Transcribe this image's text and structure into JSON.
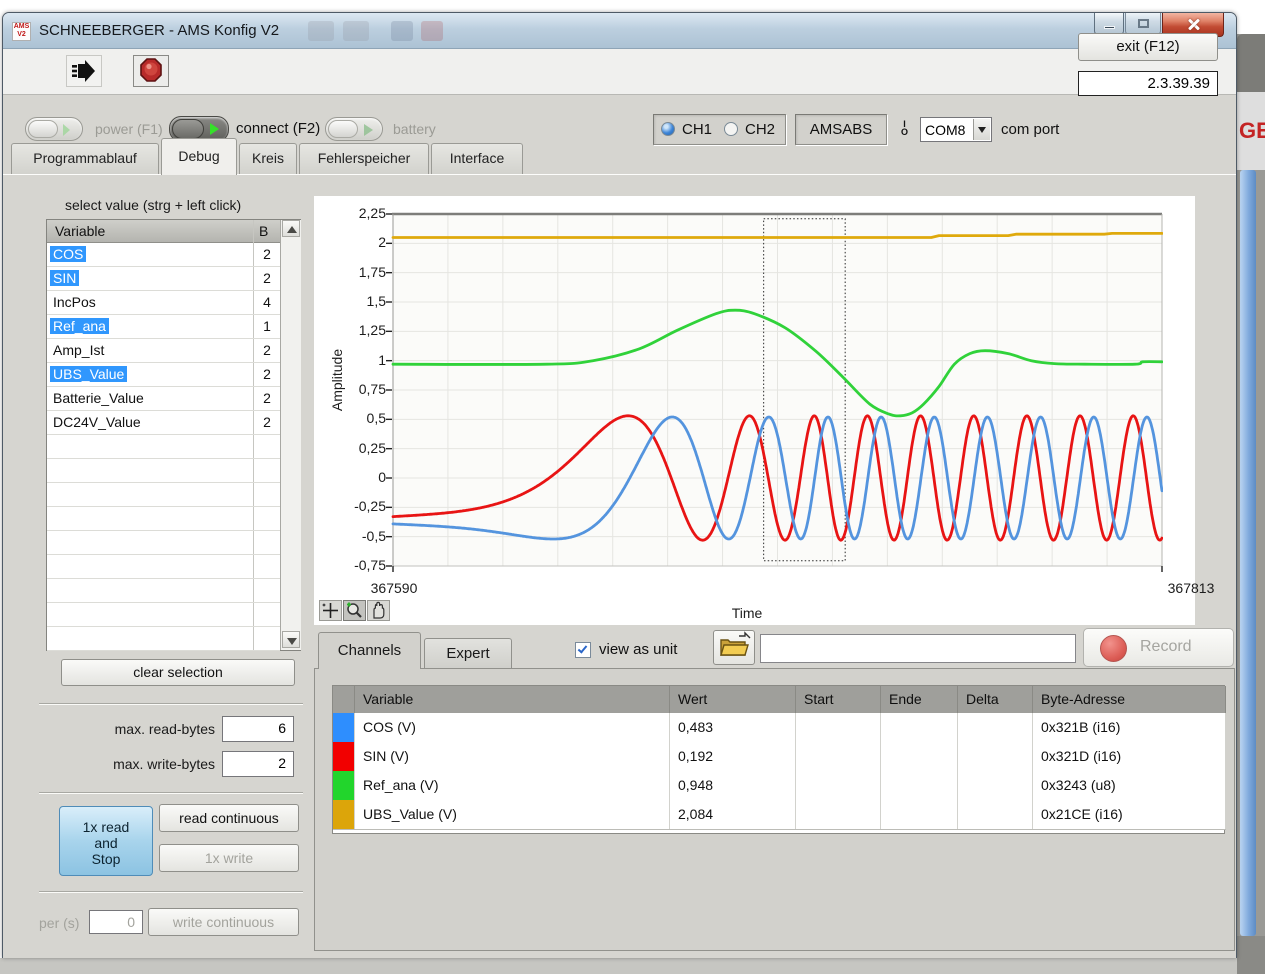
{
  "window": {
    "title": "SCHNEEBERGER - AMS Konfig V2",
    "icon_line1": "AMS",
    "icon_line2": "V2",
    "version": "2.3.39.39"
  },
  "header": {
    "power_label": "power (F1)",
    "connect_label": "connect (F2)",
    "battery_label": "battery",
    "ch1_label": "CH1",
    "ch2_label": "CH2",
    "device_name": "AMSABS",
    "io_top": "I",
    "io_bottom": "O",
    "com_value": "COM8",
    "com_label": "com port",
    "exit_label": "exit (F12)"
  },
  "tabs": {
    "items": [
      "Programmablauf",
      "Debug",
      "Kreis",
      "Fehlerspeicher",
      "Interface"
    ],
    "active": "Debug"
  },
  "left_panel": {
    "hint": "select value (strg + left click)",
    "col_variable": "Variable",
    "col_bytes": "B",
    "variables": [
      {
        "name": "COS",
        "bytes": "2",
        "selected": true
      },
      {
        "name": "SIN",
        "bytes": "2",
        "selected": true
      },
      {
        "name": "IncPos",
        "bytes": "4",
        "selected": false
      },
      {
        "name": "Ref_ana",
        "bytes": "1",
        "selected": true
      },
      {
        "name": "Amp_Ist",
        "bytes": "2",
        "selected": false
      },
      {
        "name": "UBS_Value",
        "bytes": "2",
        "selected": true
      },
      {
        "name": "Batterie_Value",
        "bytes": "2",
        "selected": false
      },
      {
        "name": "DC24V_Value",
        "bytes": "2",
        "selected": false
      }
    ],
    "empty_rows": 9,
    "clear_button": "clear selection",
    "max_read_label": "max. read-bytes",
    "max_read_value": "6",
    "max_write_label": "max. write-bytes",
    "max_write_value": "2",
    "read_stop_lines": [
      "1x read",
      "and",
      "Stop"
    ],
    "read_continuous": "read continuous",
    "write_once": "1x write",
    "per_label": "per (s)",
    "per_value": "0",
    "write_continuous": "write continuous"
  },
  "chart_data": {
    "type": "line",
    "xlabel": "Time",
    "ylabel": "Amplitude",
    "x_range": [
      367590,
      367813
    ],
    "x_tick_labels": [
      "367590",
      "367813"
    ],
    "y_range": [
      -0.75,
      2.25
    ],
    "y_tick_labels": [
      "2,25",
      "2",
      "1,75",
      "1,5",
      "1,25",
      "1",
      "0,75",
      "0,5",
      "0,25",
      "0",
      "-0,25",
      "-0,5",
      "-0,75"
    ],
    "grid_divisions_x": 14,
    "grid": true,
    "cursor_box": {
      "t0": 0.482,
      "t1": 0.588,
      "v_top": 2.21,
      "v_bottom": -0.705
    },
    "chirp": {
      "theta0": -0.67,
      "omega_max": 90,
      "base": 0.01,
      "ramp_end": 0.55,
      "ramp_exp": 2.4,
      "samples": 900
    },
    "series": [
      {
        "name": "UBS_Value",
        "unit": "V",
        "color": "#dfa90c",
        "kind": "steps",
        "last_value": 2.084,
        "points": [
          [
            0,
            2.05
          ],
          [
            0.7,
            2.05
          ],
          [
            0.71,
            2.066
          ],
          [
            0.8,
            2.066
          ],
          [
            0.81,
            2.078
          ],
          [
            0.925,
            2.078
          ],
          [
            0.935,
            2.085
          ],
          [
            1,
            2.085
          ]
        ]
      },
      {
        "name": "Ref_ana",
        "unit": "V",
        "color": "#30d23a",
        "kind": "smooth",
        "last_value": 0.948,
        "points": [
          [
            0,
            0.97
          ],
          [
            0.2,
            0.97
          ],
          [
            0.26,
            1.0
          ],
          [
            0.32,
            1.1
          ],
          [
            0.37,
            1.26
          ],
          [
            0.42,
            1.4
          ],
          [
            0.445,
            1.43
          ],
          [
            0.47,
            1.4
          ],
          [
            0.51,
            1.28
          ],
          [
            0.55,
            1.08
          ],
          [
            0.585,
            0.86
          ],
          [
            0.62,
            0.63
          ],
          [
            0.645,
            0.545
          ],
          [
            0.66,
            0.53
          ],
          [
            0.675,
            0.555
          ],
          [
            0.69,
            0.63
          ],
          [
            0.71,
            0.78
          ],
          [
            0.73,
            0.97
          ],
          [
            0.75,
            1.06
          ],
          [
            0.77,
            1.085
          ],
          [
            0.8,
            1.06
          ],
          [
            0.83,
            1.0
          ],
          [
            0.86,
            0.975
          ],
          [
            0.9,
            0.97
          ],
          [
            0.965,
            0.97
          ],
          [
            0.975,
            0.99
          ],
          [
            1,
            0.99
          ]
        ]
      },
      {
        "name": "SIN",
        "unit": "V",
        "color": "#e81414",
        "kind": "chirp",
        "amplitude": 0.53,
        "phase": 0,
        "last_value": 0.192
      },
      {
        "name": "COS",
        "unit": "V",
        "color": "#5494de",
        "kind": "chirp",
        "amplitude": 0.52,
        "phase": -1.62,
        "last_value": 0.483
      }
    ]
  },
  "channels": {
    "tab_channels": "Channels",
    "tab_expert": "Expert",
    "view_as_unit": "view as unit",
    "path_value": "",
    "record_label": "Record",
    "headers": [
      "Variable",
      "Wert",
      "Start",
      "Ende",
      "Delta",
      "Byte-Adresse"
    ],
    "rows": [
      {
        "color": "#2e8efe",
        "variable": "COS (V)",
        "wert": "0,483",
        "start": "",
        "ende": "",
        "delta": "",
        "byte_adresse": "0x321B (i16)"
      },
      {
        "color": "#f20000",
        "variable": "SIN (V)",
        "wert": "0,192",
        "start": "",
        "ende": "",
        "delta": "",
        "byte_adresse": "0x321D (i16)"
      },
      {
        "color": "#22d52c",
        "variable": "Ref_ana (V)",
        "wert": "0,948",
        "start": "",
        "ende": "",
        "delta": "",
        "byte_adresse": "0x3243 (u8)"
      },
      {
        "color": "#dca50a",
        "variable": "UBS_Value (V)",
        "wert": "2,084",
        "start": "",
        "ende": "",
        "delta": "",
        "byte_adresse": "0x21CE (i16)"
      }
    ]
  },
  "background_window": {
    "fragment_text": "GE"
  }
}
